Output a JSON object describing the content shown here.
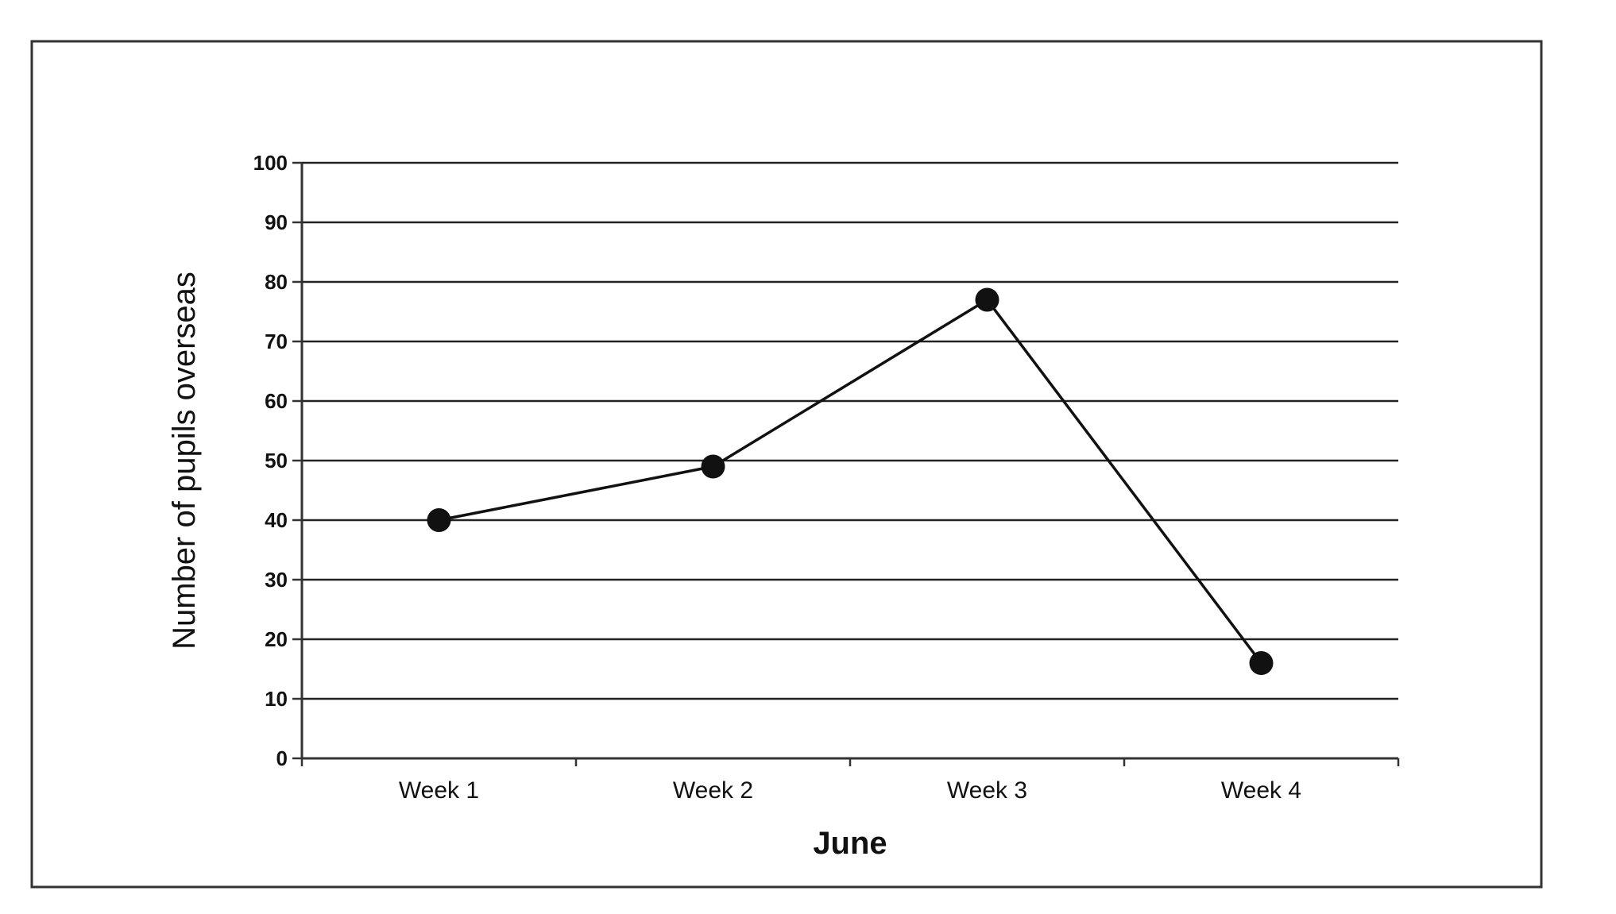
{
  "chart_data": {
    "type": "line",
    "title": "",
    "xlabel": "June",
    "ylabel": "Number of pupils overseas",
    "categories": [
      "Week 1",
      "Week 2",
      "Week 3",
      "Week 4"
    ],
    "series": [
      {
        "values": [
          40,
          49,
          77,
          16
        ]
      }
    ],
    "ylim": [
      0,
      100
    ],
    "yticks": [
      "0",
      "10",
      "20",
      "30",
      "40",
      "50",
      "60",
      "70",
      "80",
      "90",
      "100"
    ],
    "grid": true,
    "legend": "none",
    "colors": {
      "line": "#111111",
      "marker": "#111111",
      "grid": "#222222",
      "frame": "#333333"
    }
  }
}
